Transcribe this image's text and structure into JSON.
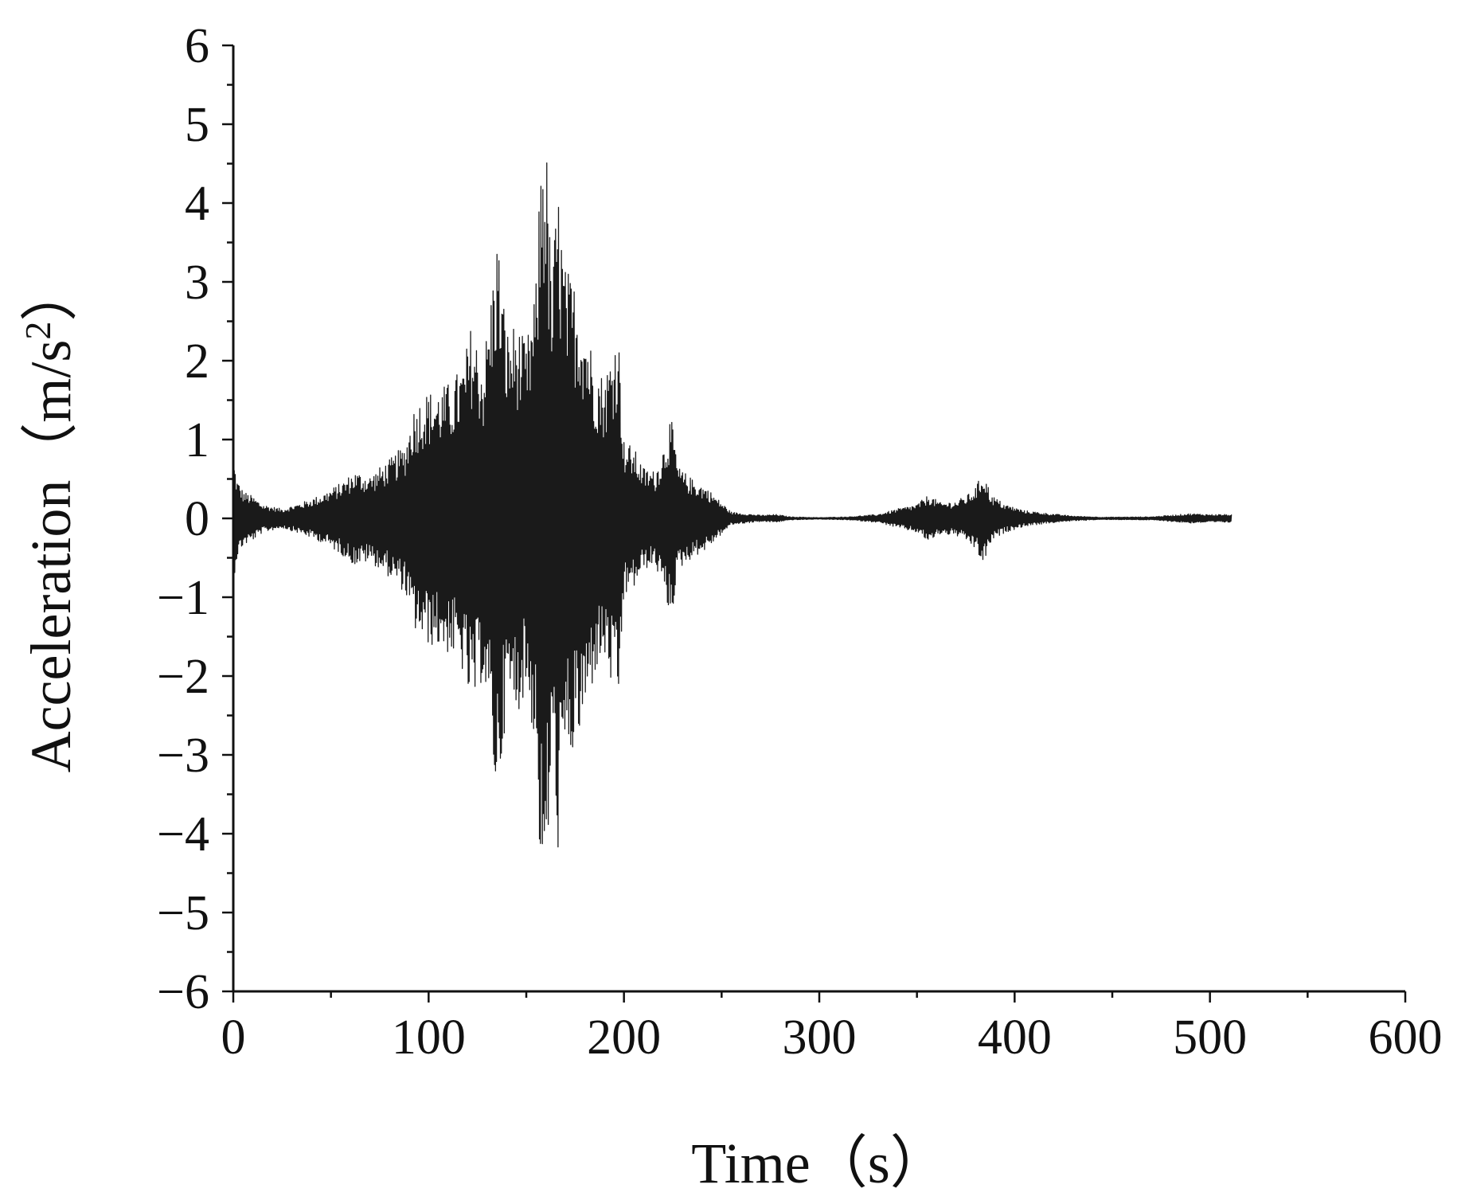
{
  "chart_data": {
    "type": "line",
    "xlabel": "Time（s）",
    "ylabel_main": "Acceleration（m/s",
    "ylabel_sup": "2",
    "ylabel_end": "）",
    "xlim": [
      0,
      600
    ],
    "ylim": [
      -6,
      6
    ],
    "x_ticks": [
      0,
      100,
      200,
      300,
      400,
      500,
      600
    ],
    "y_ticks": [
      6,
      5,
      4,
      3,
      2,
      1,
      0,
      -1,
      -2,
      -3,
      -4,
      -5,
      -6
    ],
    "x_tick_labels": [
      "0",
      "100",
      "200",
      "300",
      "400",
      "500",
      "600"
    ],
    "y_tick_labels": [
      "6",
      "5",
      "4",
      "3",
      "2",
      "1",
      "0",
      "−1",
      "−2",
      "−3",
      "−4",
      "−5",
      "−6"
    ],
    "x_minor_step": 50,
    "y_minor_step": 0.5,
    "grid": false,
    "line_color": "#1a1a1a",
    "series": [
      {
        "t_start": 0,
        "t_end": 511,
        "samples_per_second": 4,
        "envelope": [
          [
            0,
            0.8
          ],
          [
            2,
            0.5
          ],
          [
            5,
            0.35
          ],
          [
            10,
            0.28
          ],
          [
            15,
            0.18
          ],
          [
            25,
            0.12
          ],
          [
            35,
            0.2
          ],
          [
            45,
            0.3
          ],
          [
            55,
            0.45
          ],
          [
            62,
            0.6
          ],
          [
            70,
            0.55
          ],
          [
            80,
            0.75
          ],
          [
            88,
            0.95
          ],
          [
            92,
            1.4
          ],
          [
            98,
            1.6
          ],
          [
            105,
            1.65
          ],
          [
            112,
            1.75
          ],
          [
            118,
            2.0
          ],
          [
            122,
            2.5
          ],
          [
            128,
            2.0
          ],
          [
            132,
            2.9
          ],
          [
            135,
            3.7
          ],
          [
            140,
            2.4
          ],
          [
            145,
            2.5
          ],
          [
            150,
            2.2
          ],
          [
            155,
            3.0
          ],
          [
            158,
            5.1
          ],
          [
            160,
            5.0
          ],
          [
            163,
            3.0
          ],
          [
            166,
            4.3
          ],
          [
            170,
            3.2
          ],
          [
            175,
            3.0
          ],
          [
            180,
            2.6
          ],
          [
            185,
            2.0
          ],
          [
            190,
            1.8
          ],
          [
            194,
            2.2
          ],
          [
            197,
            2.5
          ],
          [
            200,
            1.0
          ],
          [
            205,
            0.9
          ],
          [
            210,
            0.65
          ],
          [
            216,
            0.6
          ],
          [
            220,
            0.9
          ],
          [
            224,
            1.3
          ],
          [
            228,
            0.65
          ],
          [
            235,
            0.5
          ],
          [
            242,
            0.4
          ],
          [
            248,
            0.25
          ],
          [
            255,
            0.08
          ],
          [
            262,
            0.06
          ],
          [
            270,
            0.04
          ],
          [
            278,
            0.05
          ],
          [
            285,
            0.02
          ],
          [
            300,
            0.01
          ],
          [
            315,
            0.02
          ],
          [
            330,
            0.05
          ],
          [
            340,
            0.12
          ],
          [
            350,
            0.18
          ],
          [
            356,
            0.3
          ],
          [
            362,
            0.2
          ],
          [
            370,
            0.22
          ],
          [
            376,
            0.3
          ],
          [
            380,
            0.4
          ],
          [
            384,
            0.6
          ],
          [
            388,
            0.3
          ],
          [
            395,
            0.18
          ],
          [
            405,
            0.1
          ],
          [
            418,
            0.06
          ],
          [
            430,
            0.03
          ],
          [
            445,
            0.015
          ],
          [
            470,
            0.02
          ],
          [
            480,
            0.04
          ],
          [
            490,
            0.06
          ],
          [
            500,
            0.05
          ],
          [
            511,
            0.05
          ]
        ]
      }
    ]
  }
}
